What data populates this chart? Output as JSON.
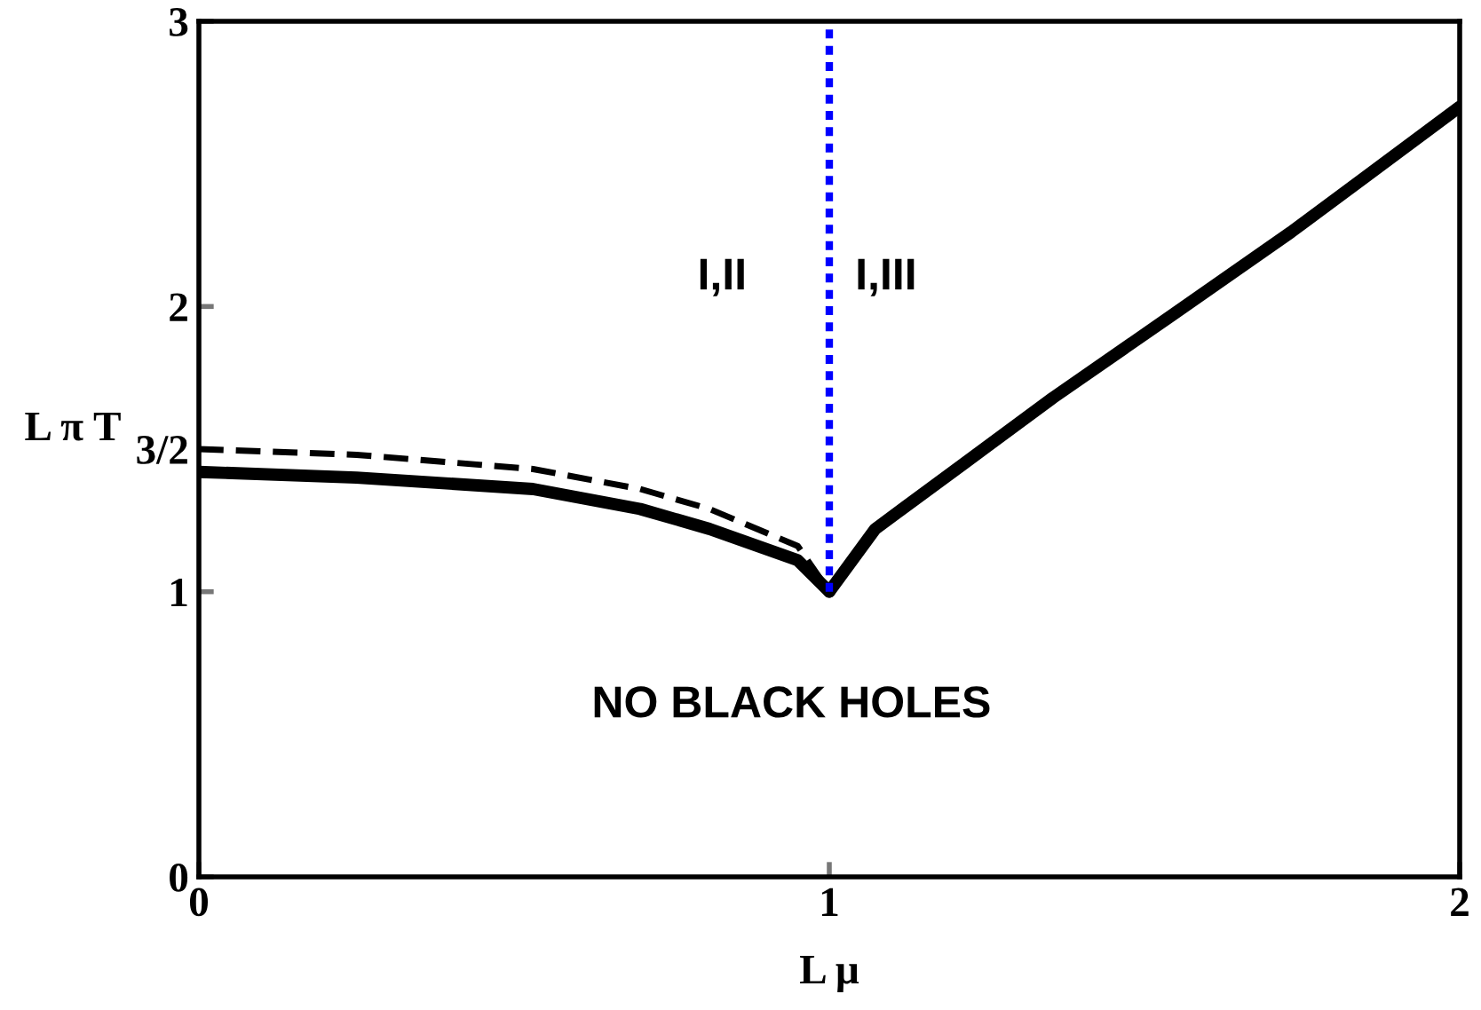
{
  "chart_data": {
    "type": "line",
    "xlabel": "L μ",
    "ylabel": "L π T",
    "series": [
      {
        "color": "#000000",
        "line_style": "solid",
        "x": [
          0,
          0.25,
          0.53,
          0.7,
          0.81,
          0.95,
          1
        ],
        "values": [
          1.42,
          1.4,
          1.36,
          1.29,
          1.22,
          1.11,
          1
        ]
      },
      {
        "color": "#000000",
        "line_style": "dashed",
        "x": [
          0,
          0.25,
          0.53,
          0.7,
          0.81,
          0.95,
          1
        ],
        "values": [
          1.5,
          1.48,
          1.43,
          1.36,
          1.29,
          1.16,
          1
        ]
      },
      {
        "color": "#000000",
        "line_style": "solid",
        "x": [
          1,
          1.073,
          1.214,
          1.355,
          1.544,
          1.732,
          2
        ],
        "values": [
          1,
          1.22,
          1.45,
          1.68,
          1.97,
          2.26,
          2.7
        ]
      },
      {
        "color": "#0000ff",
        "line_style": "dotted",
        "x": [
          1,
          1
        ],
        "values": [
          1,
          3
        ]
      }
    ],
    "annotations": [
      "I,II",
      "I,III",
      "NO BLACK HOLES"
    ],
    "xlim": [
      0,
      2
    ],
    "ylim": [
      0,
      3
    ],
    "xticks": [
      0,
      1,
      2
    ],
    "yticks": [
      0,
      1,
      {
        "value": 1.5,
        "label": "3/2"
      },
      2,
      3
    ],
    "grid": false,
    "legend": false,
    "marker": "none"
  }
}
